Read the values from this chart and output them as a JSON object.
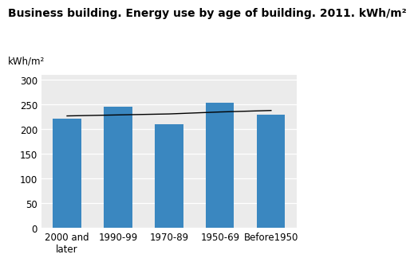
{
  "title": "Business building. Energy use by age of building. 2011. kWh/m²",
  "ylabel": "kWh/m²",
  "categories": [
    "2000 and\nlater",
    "1990-99",
    "1970-89",
    "1950-69",
    "Before1950"
  ],
  "values": [
    221,
    246,
    210,
    254,
    229
  ],
  "bar_color": "#3a87c0",
  "trend_y": [
    227,
    229,
    231,
    235,
    238
  ],
  "ylim": [
    0,
    310
  ],
  "yticks": [
    0,
    50,
    100,
    150,
    200,
    250,
    300
  ],
  "background_color": "#ebebeb",
  "title_fontsize": 10,
  "ylabel_fontsize": 8.5,
  "tick_fontsize": 8.5,
  "bar_width": 0.55
}
